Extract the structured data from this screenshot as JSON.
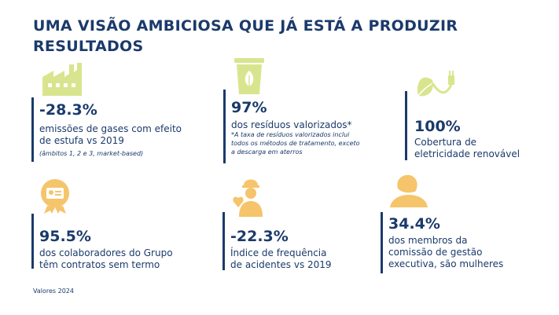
{
  "title": {
    "line1": "UMA VISÃO AMBICIOSA QUE JÁ ESTÁ A PRODUZIR",
    "line2": "RESULTADOS"
  },
  "colors": {
    "text": "#1b3a6b",
    "green_icon": "#d9e58e",
    "orange_icon": "#f5c46b"
  },
  "metrics": [
    {
      "icon": "factory-icon",
      "value": "-28.3%",
      "desc": [
        "emissões de gases com efeito",
        "de estufa vs 2019"
      ],
      "note": [
        "(âmbitos 1, 2 e 3, market-based)"
      ]
    },
    {
      "icon": "recycling-bin-icon",
      "value": "97%",
      "desc": [
        "dos resíduos valorizados*"
      ],
      "note": [
        "*A taxa de resíduos valorizados inclui",
        "todos os métodos de tratamento, exceto",
        "a descarga em aterros"
      ]
    },
    {
      "icon": "leaf-plug-icon",
      "value": "100%",
      "desc": [
        "Cobertura de",
        "eletricidade renovável"
      ]
    },
    {
      "icon": "id-badge-icon",
      "value": "95.5%",
      "desc": [
        "dos colaboradores do Grupo",
        "têm contratos sem termo"
      ]
    },
    {
      "icon": "worker-heart-icon",
      "value": "-22.3%",
      "desc": [
        "Índice de frequência",
        "de acidentes vs 2019"
      ]
    },
    {
      "icon": "woman-icon",
      "value": "34.4%",
      "desc": [
        "dos membros da",
        "comissão de gestão",
        "executiva, são mulheres"
      ]
    }
  ],
  "footer": "Valores 2024"
}
